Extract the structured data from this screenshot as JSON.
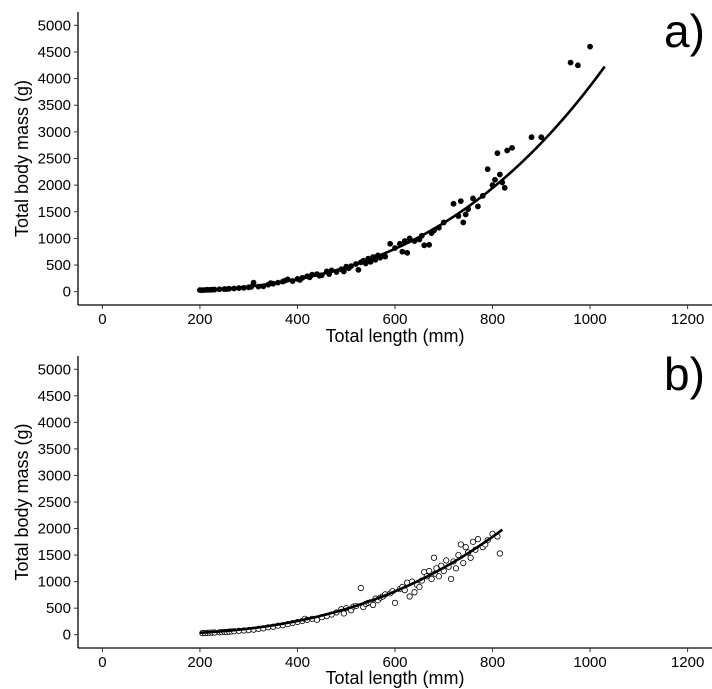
{
  "chart_data": [
    {
      "type": "scatter",
      "panel_label": "a)",
      "xlabel": "Total length (mm)",
      "ylabel": "Total body mass (g)",
      "xlim": [
        -50,
        1250
      ],
      "ylim": [
        -250,
        5250
      ],
      "x_ticks": [
        0,
        200,
        400,
        600,
        800,
        1000,
        1200
      ],
      "y_ticks": [
        0,
        500,
        1000,
        1500,
        2000,
        2500,
        3000,
        3500,
        4000,
        4500,
        5000
      ],
      "grid": false,
      "marker": "filled",
      "fit_curve": {
        "a": 2.38e-06,
        "b": 3.07,
        "x_range": [
          200,
          1030
        ]
      },
      "points": [
        [
          200,
          30
        ],
        [
          205,
          28
        ],
        [
          210,
          32
        ],
        [
          215,
          35
        ],
        [
          220,
          34
        ],
        [
          225,
          37
        ],
        [
          230,
          40
        ],
        [
          240,
          45
        ],
        [
          250,
          50
        ],
        [
          255,
          48
        ],
        [
          260,
          55
        ],
        [
          270,
          60
        ],
        [
          280,
          68
        ],
        [
          290,
          72
        ],
        [
          300,
          82
        ],
        [
          305,
          90
        ],
        [
          310,
          170
        ],
        [
          320,
          95
        ],
        [
          330,
          100
        ],
        [
          340,
          130
        ],
        [
          345,
          160
        ],
        [
          350,
          150
        ],
        [
          360,
          170
        ],
        [
          370,
          190
        ],
        [
          375,
          210
        ],
        [
          380,
          230
        ],
        [
          390,
          200
        ],
        [
          400,
          240
        ],
        [
          405,
          220
        ],
        [
          410,
          260
        ],
        [
          420,
          290
        ],
        [
          425,
          270
        ],
        [
          430,
          320
        ],
        [
          440,
          330
        ],
        [
          445,
          300
        ],
        [
          450,
          310
        ],
        [
          460,
          380
        ],
        [
          465,
          330
        ],
        [
          470,
          400
        ],
        [
          480,
          370
        ],
        [
          490,
          420
        ],
        [
          495,
          380
        ],
        [
          500,
          470
        ],
        [
          505,
          440
        ],
        [
          510,
          480
        ],
        [
          520,
          520
        ],
        [
          525,
          410
        ],
        [
          530,
          550
        ],
        [
          535,
          580
        ],
        [
          540,
          530
        ],
        [
          545,
          620
        ],
        [
          550,
          560
        ],
        [
          555,
          650
        ],
        [
          560,
          600
        ],
        [
          565,
          680
        ],
        [
          570,
          640
        ],
        [
          580,
          660
        ],
        [
          590,
          900
        ],
        [
          600,
          820
        ],
        [
          610,
          900
        ],
        [
          615,
          750
        ],
        [
          620,
          950
        ],
        [
          625,
          730
        ],
        [
          630,
          1000
        ],
        [
          640,
          950
        ],
        [
          650,
          980
        ],
        [
          655,
          1050
        ],
        [
          660,
          870
        ],
        [
          670,
          880
        ],
        [
          675,
          1100
        ],
        [
          680,
          1150
        ],
        [
          690,
          1200
        ],
        [
          700,
          1300
        ],
        [
          720,
          1650
        ],
        [
          730,
          1420
        ],
        [
          735,
          1700
        ],
        [
          740,
          1300
        ],
        [
          745,
          1450
        ],
        [
          750,
          1550
        ],
        [
          760,
          1750
        ],
        [
          770,
          1600
        ],
        [
          780,
          1800
        ],
        [
          790,
          2300
        ],
        [
          800,
          2000
        ],
        [
          805,
          2100
        ],
        [
          810,
          2600
        ],
        [
          815,
          2200
        ],
        [
          820,
          2050
        ],
        [
          825,
          1950
        ],
        [
          830,
          2650
        ],
        [
          840,
          2700
        ],
        [
          880,
          2900
        ],
        [
          900,
          2900
        ],
        [
          960,
          4300
        ],
        [
          975,
          4250
        ],
        [
          1000,
          4600
        ]
      ]
    },
    {
      "type": "scatter",
      "panel_label": "b)",
      "xlabel": "Total length (mm)",
      "ylabel": "Total body mass (g)",
      "xlim": [
        -50,
        1250
      ],
      "ylim": [
        -250,
        5250
      ],
      "x_ticks": [
        0,
        200,
        400,
        600,
        800,
        1000,
        1200
      ],
      "y_ticks": [
        0,
        500,
        1000,
        1500,
        2000,
        2500,
        3000,
        3500,
        4000,
        4500,
        5000
      ],
      "grid": false,
      "marker": "open",
      "fit_curve": {
        "a": 1.1e-05,
        "b": 2.833,
        "x_range": [
          200,
          820
        ]
      },
      "points": [
        [
          205,
          30
        ],
        [
          210,
          32
        ],
        [
          215,
          35
        ],
        [
          220,
          38
        ],
        [
          225,
          40
        ],
        [
          230,
          42
        ],
        [
          240,
          46
        ],
        [
          245,
          50
        ],
        [
          250,
          55
        ],
        [
          255,
          52
        ],
        [
          260,
          58
        ],
        [
          265,
          62
        ],
        [
          270,
          66
        ],
        [
          280,
          72
        ],
        [
          290,
          80
        ],
        [
          300,
          88
        ],
        [
          310,
          95
        ],
        [
          320,
          110
        ],
        [
          330,
          120
        ],
        [
          340,
          140
        ],
        [
          350,
          150
        ],
        [
          360,
          170
        ],
        [
          370,
          180
        ],
        [
          380,
          200
        ],
        [
          390,
          220
        ],
        [
          400,
          240
        ],
        [
          410,
          260
        ],
        [
          415,
          300
        ],
        [
          420,
          280
        ],
        [
          430,
          300
        ],
        [
          440,
          280
        ],
        [
          450,
          330
        ],
        [
          460,
          350
        ],
        [
          470,
          380
        ],
        [
          480,
          420
        ],
        [
          490,
          480
        ],
        [
          495,
          400
        ],
        [
          500,
          500
        ],
        [
          510,
          460
        ],
        [
          515,
          530
        ],
        [
          520,
          540
        ],
        [
          530,
          880
        ],
        [
          535,
          520
        ],
        [
          540,
          580
        ],
        [
          545,
          600
        ],
        [
          550,
          610
        ],
        [
          555,
          560
        ],
        [
          560,
          680
        ],
        [
          565,
          650
        ],
        [
          570,
          700
        ],
        [
          575,
          720
        ],
        [
          580,
          760
        ],
        [
          590,
          780
        ],
        [
          595,
          820
        ],
        [
          600,
          600
        ],
        [
          610,
          860
        ],
        [
          615,
          900
        ],
        [
          620,
          840
        ],
        [
          625,
          980
        ],
        [
          630,
          720
        ],
        [
          635,
          1000
        ],
        [
          640,
          800
        ],
        [
          645,
          940
        ],
        [
          650,
          900
        ],
        [
          655,
          1020
        ],
        [
          660,
          1180
        ],
        [
          665,
          1100
        ],
        [
          670,
          1200
        ],
        [
          675,
          1050
        ],
        [
          680,
          1450
        ],
        [
          682,
          1150
        ],
        [
          685,
          1250
        ],
        [
          690,
          1100
        ],
        [
          695,
          1300
        ],
        [
          700,
          1200
        ],
        [
          705,
          1400
        ],
        [
          710,
          1280
        ],
        [
          715,
          1050
        ],
        [
          720,
          1380
        ],
        [
          725,
          1250
        ],
        [
          730,
          1500
        ],
        [
          735,
          1700
        ],
        [
          740,
          1350
        ],
        [
          745,
          1650
        ],
        [
          750,
          1550
        ],
        [
          755,
          1450
        ],
        [
          760,
          1750
        ],
        [
          765,
          1600
        ],
        [
          770,
          1800
        ],
        [
          780,
          1650
        ],
        [
          785,
          1700
        ],
        [
          790,
          1780
        ],
        [
          800,
          1900
        ],
        [
          810,
          1850
        ],
        [
          815,
          1530
        ]
      ]
    }
  ]
}
